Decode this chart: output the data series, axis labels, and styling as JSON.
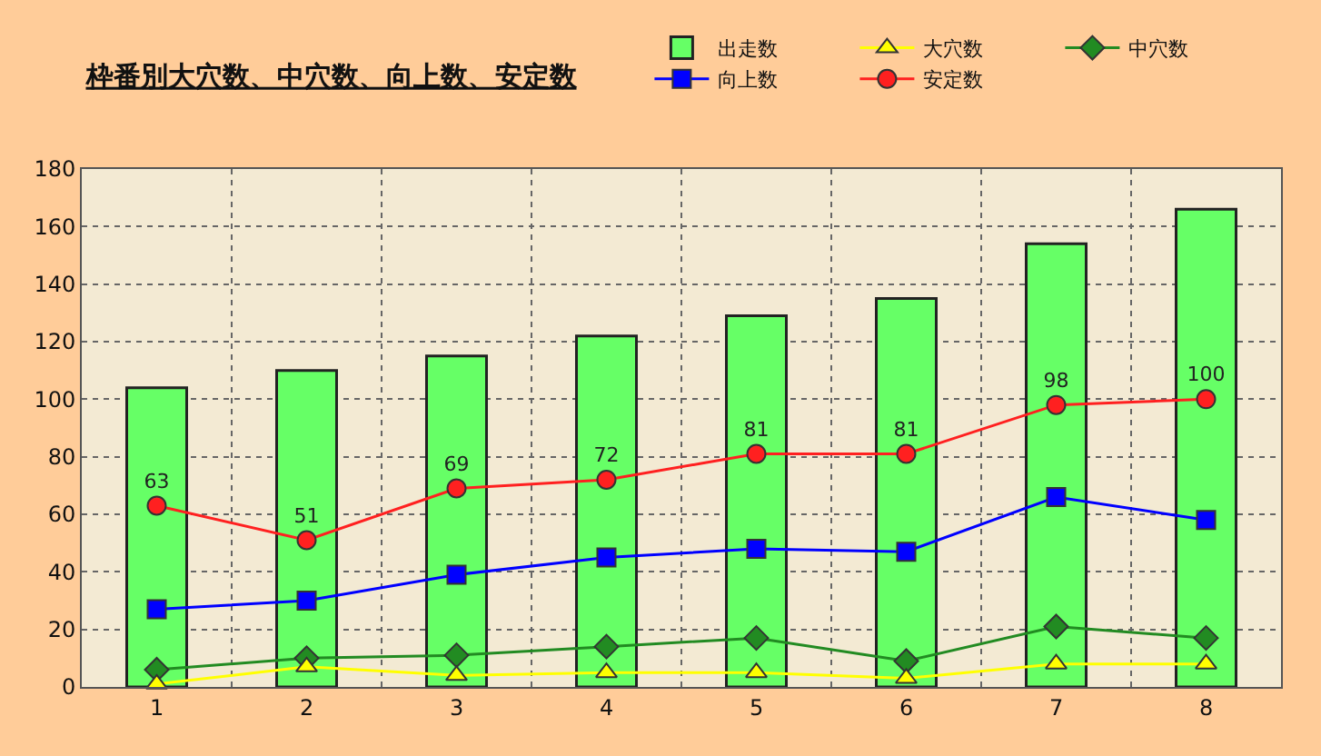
{
  "chart_data": {
    "type": "bar",
    "title": "枠番別大穴数、中穴数、向上数、安定数",
    "categories": [
      "1",
      "2",
      "3",
      "4",
      "5",
      "6",
      "7",
      "8"
    ],
    "series": [
      {
        "name": "出走数",
        "type": "bar",
        "color": "#66ff66",
        "values": [
          104,
          110,
          115,
          122,
          129,
          135,
          154,
          166
        ]
      },
      {
        "name": "大穴数",
        "type": "line",
        "marker": "triangle",
        "color": "#ffff00",
        "values": [
          1,
          7,
          4,
          5,
          5,
          3,
          8,
          8
        ]
      },
      {
        "name": "中穴数",
        "type": "line",
        "marker": "diamond",
        "color": "#228b22",
        "values": [
          6,
          10,
          11,
          14,
          17,
          9,
          21,
          17
        ]
      },
      {
        "name": "向上数",
        "type": "line",
        "marker": "square",
        "color": "#0000ff",
        "values": [
          27,
          30,
          39,
          45,
          48,
          47,
          66,
          58
        ]
      },
      {
        "name": "安定数",
        "type": "line",
        "marker": "circle",
        "color": "#ff2020",
        "values": [
          63,
          51,
          69,
          72,
          81,
          81,
          98,
          100
        ],
        "value_labels": [
          "63",
          "51",
          "69",
          "72",
          "81",
          "81",
          "98",
          "100"
        ]
      }
    ],
    "ylim": [
      0,
      180
    ],
    "yticks": [
      0,
      20,
      40,
      60,
      80,
      100,
      120,
      140,
      160,
      180
    ],
    "grid": true,
    "legend": "top right"
  }
}
